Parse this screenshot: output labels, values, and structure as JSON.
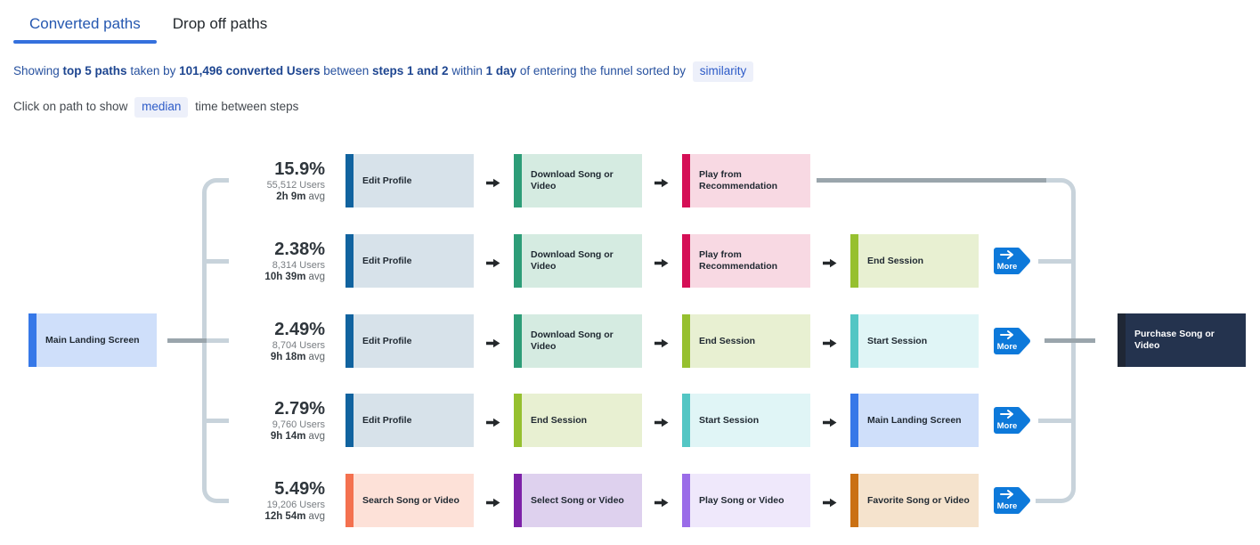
{
  "tabs": [
    {
      "label": "Converted paths",
      "active": true
    },
    {
      "label": "Drop off paths",
      "active": false
    }
  ],
  "summary": {
    "segments": [
      {
        "t": "Showing "
      },
      {
        "t": "top 5 paths",
        "b": true
      },
      {
        "t": " taken by "
      },
      {
        "t": "101,496 converted Users",
        "b": true
      },
      {
        "t": " between "
      },
      {
        "t": "steps 1 and 2",
        "b": true
      },
      {
        "t": " within "
      },
      {
        "t": "1 day",
        "b": true
      },
      {
        "t": " of entering the funnel sorted by "
      },
      {
        "t": "similarity",
        "chip": true
      }
    ]
  },
  "hint": {
    "segments": [
      {
        "t": "Click on path to show "
      },
      {
        "t": "median",
        "chip": true
      },
      {
        "t": " time between steps"
      }
    ]
  },
  "diagram": {
    "start_node": {
      "label": "Main Landing Screen",
      "bar": "#3678e8",
      "bg": "#cfdffa",
      "text": "#1f2831"
    },
    "end_node": {
      "label": "Purchase Song or Video",
      "bar": "#1f2735",
      "bg": "#24334e",
      "text": "#ffffff"
    },
    "more_label": "More",
    "event_colors": {
      "Edit Profile": {
        "bar": "#11639f",
        "bg": "#d7e2ea"
      },
      "Download Song or Video": {
        "bar": "#2d9d78",
        "bg": "#d5ebe1"
      },
      "Play from Recommendation": {
        "bar": "#d50f56",
        "bg": "#f8d9e3"
      },
      "End Session": {
        "bar": "#96c02f",
        "bg": "#e8f0d2"
      },
      "Start Session": {
        "bar": "#53c6c4",
        "bg": "#e0f5f6"
      },
      "Main Landing Screen": {
        "bar": "#3678e8",
        "bg": "#cfdffa"
      },
      "Search Song or Video": {
        "bar": "#f4714f",
        "bg": "#fde1d8"
      },
      "Select Song or Video": {
        "bar": "#7d22a8",
        "bg": "#ded1ee"
      },
      "Play Song or Video": {
        "bar": "#9a6ce8",
        "bg": "#efe8fb"
      },
      "Favorite Song or Video": {
        "bar": "#ca7013",
        "bg": "#f5e3cd"
      }
    },
    "rows": [
      {
        "pct": "15.9%",
        "users": "55,512 Users",
        "avg": "2h 9m",
        "avg_suffix": "avg",
        "steps": [
          "Edit Profile",
          "Download Song or Video",
          "Play from Recommendation"
        ],
        "more": false
      },
      {
        "pct": "2.38%",
        "users": "8,314 Users",
        "avg": "10h 39m",
        "avg_suffix": "avg",
        "steps": [
          "Edit Profile",
          "Download Song or Video",
          "Play from Recommendation",
          "End Session"
        ],
        "more": true
      },
      {
        "pct": "2.49%",
        "users": "8,704 Users",
        "avg": "9h 18m",
        "avg_suffix": "avg",
        "steps": [
          "Edit Profile",
          "Download Song or Video",
          "End Session",
          "Start Session"
        ],
        "more": true
      },
      {
        "pct": "2.79%",
        "users": "9,760 Users",
        "avg": "9h 14m",
        "avg_suffix": "avg",
        "steps": [
          "Edit Profile",
          "End Session",
          "Start Session",
          "Main Landing Screen"
        ],
        "more": true
      },
      {
        "pct": "5.49%",
        "users": "19,206 Users",
        "avg": "12h 54m",
        "avg_suffix": "avg",
        "steps": [
          "Search Song or Video",
          "Select Song or Video",
          "Play Song or Video",
          "Favorite Song or Video"
        ],
        "more": true
      }
    ]
  },
  "colors": {
    "tab_accent": "#3470dd",
    "connector_light": "#c8d3db",
    "connector_dark": "#9aa5ac",
    "more_button": "#0d79da",
    "step_arrow": "#24282b"
  }
}
